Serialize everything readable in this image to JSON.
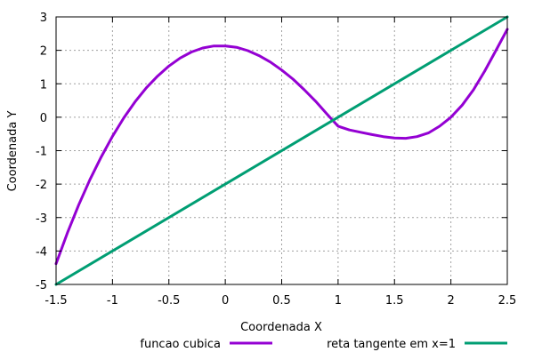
{
  "chart_data": {
    "type": "line",
    "xlabel": "Coordenada X",
    "ylabel": "Coordenada Y",
    "xlim": [
      -1.5,
      2.5
    ],
    "ylim": [
      -5,
      3
    ],
    "grid": true,
    "legend_position": "bottom",
    "x_ticks": [
      -1.5,
      -1,
      -0.5,
      0,
      0.5,
      1,
      1.5,
      2,
      2.5
    ],
    "x_tick_labels": [
      "-1.5",
      "-1",
      "-0.5",
      "0",
      "0.5",
      "1",
      "1.5",
      "2",
      "2.5"
    ],
    "y_ticks": [
      -5,
      -4,
      -3,
      -2,
      -1,
      0,
      1,
      2,
      3
    ],
    "y_tick_labels": [
      "-5",
      "-4",
      "-3",
      "-2",
      "-1",
      "0",
      "1",
      "2",
      "3"
    ],
    "series": [
      {
        "name": "funcao cubica",
        "color": "#9400d3",
        "x": [
          -1.5,
          -1.4,
          -1.3,
          -1.2,
          -1.1,
          -1.0,
          -0.9,
          -0.8,
          -0.7,
          -0.6,
          -0.5,
          -0.4,
          -0.3,
          -0.2,
          -0.1,
          0.0,
          0.1,
          0.2,
          0.3,
          0.4,
          0.5,
          0.6,
          0.7,
          0.8,
          0.9,
          1.0,
          1.1,
          1.2,
          1.3,
          1.4,
          1.5,
          1.6,
          1.7,
          1.8,
          1.9,
          2.0,
          2.1,
          2.2,
          2.3,
          2.4,
          2.5
        ],
        "y": [
          -4.38,
          -3.46,
          -2.63,
          -1.87,
          -1.19,
          -0.57,
          -0.02,
          0.46,
          0.88,
          1.23,
          1.53,
          1.77,
          1.95,
          2.07,
          2.13,
          2.13,
          2.09,
          1.99,
          1.84,
          1.65,
          1.41,
          1.14,
          0.82,
          0.48,
          0.1,
          -0.27,
          -0.38,
          -0.45,
          -0.52,
          -0.58,
          -0.62,
          -0.63,
          -0.58,
          -0.47,
          -0.27,
          0.0,
          0.36,
          0.82,
          1.38,
          2.0,
          2.63
        ]
      },
      {
        "name": "reta tangente em x=1",
        "color": "#009e73",
        "x": [
          -1.5,
          2.5
        ],
        "y": [
          -5,
          3
        ]
      }
    ]
  }
}
